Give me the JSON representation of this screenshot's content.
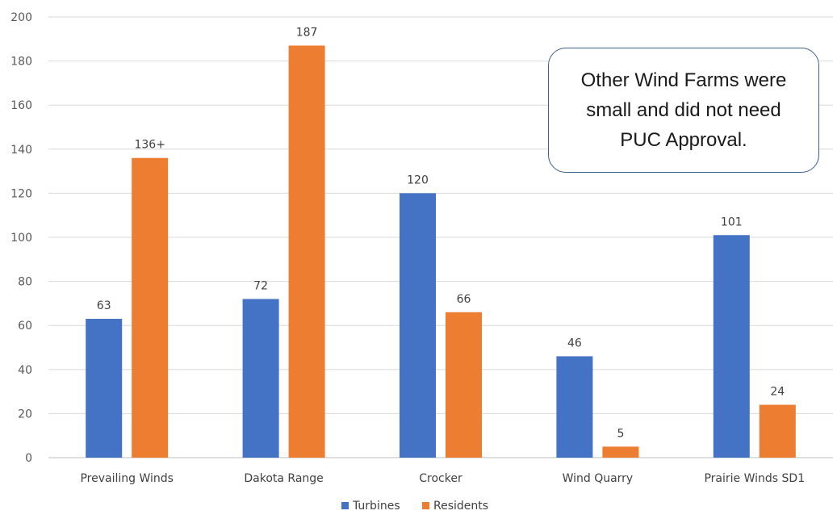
{
  "chart_data": {
    "type": "bar",
    "title": "",
    "xlabel": "",
    "ylabel": "",
    "ylim": [
      0,
      200
    ],
    "yticks": [
      0,
      20,
      40,
      60,
      80,
      100,
      120,
      140,
      160,
      180,
      200
    ],
    "grid": true,
    "legend_position": "bottom",
    "categories": [
      "Prevailing Winds",
      "Dakota Range",
      "Crocker",
      "Wind Quarry",
      "Prairie Winds SD1"
    ],
    "series": [
      {
        "name": "Turbines",
        "color": "#4472c4",
        "values": [
          63,
          72,
          120,
          46,
          101
        ],
        "labels": [
          "63",
          "72",
          "120",
          "46",
          "101"
        ]
      },
      {
        "name": "Residents",
        "color": "#ed7d31",
        "values": [
          136,
          187,
          66,
          5,
          24
        ],
        "labels": [
          "136+",
          "187",
          "66",
          "5",
          "24"
        ]
      }
    ],
    "annotation": "Other Wind Farms were small and did not need PUC Approval."
  }
}
